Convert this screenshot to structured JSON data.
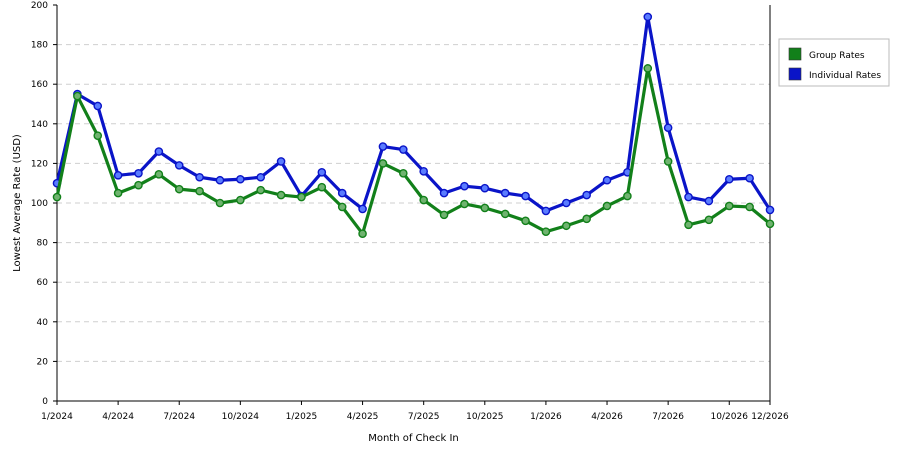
{
  "chart_data": {
    "type": "line",
    "title": "",
    "xlabel": "Month of Check In",
    "ylabel": "Lowest Average Rate (USD)",
    "ylim": [
      0,
      200
    ],
    "yticks": [
      0,
      20,
      40,
      60,
      80,
      100,
      120,
      140,
      160,
      180,
      200
    ],
    "grid": true,
    "legend_position": "right",
    "x": [
      "1/2024",
      "2/2024",
      "3/2024",
      "4/2024",
      "5/2024",
      "6/2024",
      "7/2024",
      "8/2024",
      "9/2024",
      "10/2024",
      "11/2024",
      "12/2024",
      "1/2025",
      "2/2025",
      "3/2025",
      "4/2025",
      "5/2025",
      "6/2025",
      "7/2025",
      "8/2025",
      "9/2025",
      "10/2025",
      "11/2025",
      "12/2025",
      "1/2026",
      "2/2026",
      "3/2026",
      "4/2026",
      "5/2026",
      "6/2026",
      "7/2026",
      "8/2026",
      "9/2026",
      "10/2026",
      "11/2026",
      "12/2026"
    ],
    "x_tick_labels": [
      "1/2024",
      "4/2024",
      "7/2024",
      "10/2024",
      "1/2025",
      "4/2025",
      "7/2025",
      "10/2025",
      "1/2026",
      "4/2026",
      "7/2026",
      "10/2026",
      "12/2026"
    ],
    "series": [
      {
        "name": "Individual Rates",
        "color": "#0a14c8",
        "values": [
          110,
          155,
          149,
          114,
          115,
          126,
          119,
          113,
          111.5,
          112,
          113,
          121,
          103.5,
          115.5,
          105,
          97,
          128.5,
          127,
          116,
          105,
          108.5,
          107.5,
          105,
          103.5,
          96,
          100,
          104,
          111.5,
          115.5,
          194,
          138,
          103,
          101,
          112,
          112.5,
          96.5
        ]
      },
      {
        "name": "Group Rates",
        "color": "#12801a",
        "values": [
          103,
          154,
          134,
          105,
          109,
          114.5,
          107,
          106,
          100,
          101.5,
          106.5,
          104,
          103,
          108,
          98,
          84.5,
          120,
          115,
          101.5,
          94,
          99.5,
          97.5,
          94.5,
          91,
          85.5,
          88.5,
          92,
          98.5,
          103.5,
          168,
          121,
          89,
          91.5,
          98.5,
          98,
          89.5
        ]
      }
    ],
    "legend": [
      {
        "name": "Group Rates",
        "color": "#12801a"
      },
      {
        "name": "Individual Rates",
        "color": "#0a14c8"
      }
    ]
  }
}
